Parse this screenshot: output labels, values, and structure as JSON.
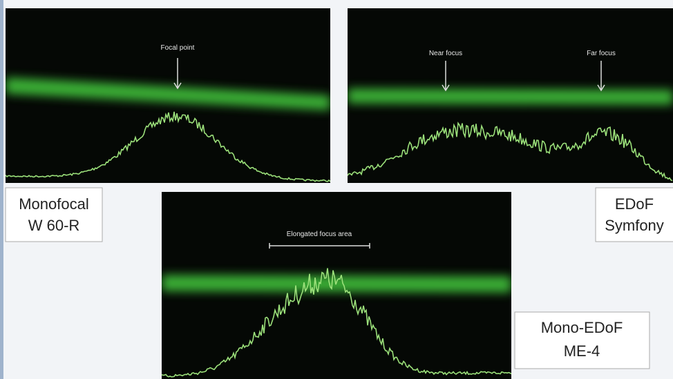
{
  "panels": [
    {
      "label": [
        "Monofocal",
        "W 60-R"
      ],
      "annotations": [
        "Focal point"
      ]
    },
    {
      "label": [
        "EDoF",
        "Symfony"
      ],
      "annotations": [
        "Near focus",
        "Far focus"
      ]
    },
    {
      "label": [
        "Mono-EDoF",
        "ME-4"
      ],
      "annotations": [
        "Elongated focus area"
      ]
    }
  ]
}
